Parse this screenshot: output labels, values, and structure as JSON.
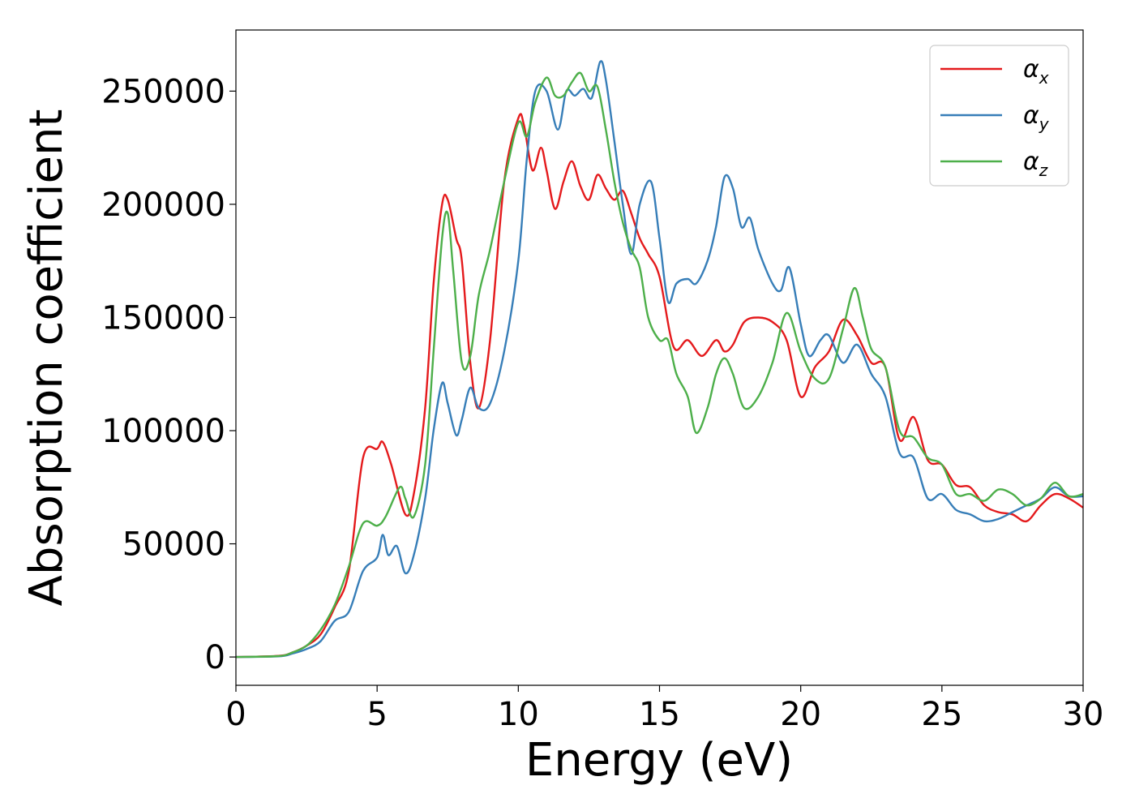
{
  "chart_data": {
    "type": "line",
    "title": "",
    "xlabel": "Energy (eV)",
    "ylabel": "Absorption coefficient",
    "xlim": [
      0,
      30
    ],
    "ylim": [
      -12500,
      277000
    ],
    "xticks": [
      0,
      5,
      10,
      15,
      20,
      25,
      30
    ],
    "xtick_labels": [
      "0",
      "5",
      "10",
      "15",
      "20",
      "25",
      "30"
    ],
    "yticks": [
      0,
      50000,
      100000,
      150000,
      200000,
      250000
    ],
    "ytick_labels": [
      "0",
      "50000",
      "100000",
      "150000",
      "200000",
      "250000"
    ],
    "legend_position": "top-right",
    "grid": false,
    "series": [
      {
        "name": "α_x",
        "symbol": "α",
        "subscript": "x",
        "color": "#e41a1c",
        "points": [
          [
            0,
            0
          ],
          [
            1.5,
            500
          ],
          [
            2,
            2000
          ],
          [
            2.5,
            5000
          ],
          [
            3,
            10000
          ],
          [
            3.5,
            22000
          ],
          [
            4,
            38000
          ],
          [
            4.5,
            88000
          ],
          [
            5,
            92000
          ],
          [
            5.2,
            95000
          ],
          [
            5.5,
            85000
          ],
          [
            6,
            63000
          ],
          [
            6.3,
            72000
          ],
          [
            6.7,
            110000
          ],
          [
            7,
            165000
          ],
          [
            7.3,
            200000
          ],
          [
            7.5,
            202000
          ],
          [
            7.8,
            185000
          ],
          [
            8,
            175000
          ],
          [
            8.3,
            130000
          ],
          [
            8.6,
            110000
          ],
          [
            9,
            140000
          ],
          [
            9.5,
            210000
          ],
          [
            10,
            238000
          ],
          [
            10.2,
            235000
          ],
          [
            10.5,
            215000
          ],
          [
            10.8,
            225000
          ],
          [
            11,
            215000
          ],
          [
            11.3,
            198000
          ],
          [
            11.6,
            210000
          ],
          [
            11.9,
            219000
          ],
          [
            12.2,
            208000
          ],
          [
            12.5,
            202000
          ],
          [
            12.8,
            213000
          ],
          [
            13.1,
            207000
          ],
          [
            13.4,
            202000
          ],
          [
            13.7,
            206000
          ],
          [
            14,
            196000
          ],
          [
            14.3,
            185000
          ],
          [
            14.6,
            178000
          ],
          [
            15,
            168000
          ],
          [
            15.5,
            137000
          ],
          [
            16,
            140000
          ],
          [
            16.5,
            133000
          ],
          [
            17,
            140000
          ],
          [
            17.3,
            135000
          ],
          [
            17.6,
            138000
          ],
          [
            18,
            148000
          ],
          [
            18.5,
            150000
          ],
          [
            19,
            148000
          ],
          [
            19.5,
            140000
          ],
          [
            20,
            115000
          ],
          [
            20.5,
            128000
          ],
          [
            21,
            135000
          ],
          [
            21.5,
            149000
          ],
          [
            22,
            142000
          ],
          [
            22.5,
            130000
          ],
          [
            23,
            128000
          ],
          [
            23.5,
            96000
          ],
          [
            24,
            106000
          ],
          [
            24.5,
            87000
          ],
          [
            25,
            85000
          ],
          [
            25.5,
            76000
          ],
          [
            26,
            75000
          ],
          [
            26.5,
            67000
          ],
          [
            27,
            64000
          ],
          [
            27.5,
            63000
          ],
          [
            28,
            60000
          ],
          [
            28.5,
            67000
          ],
          [
            29,
            72000
          ],
          [
            29.5,
            70000
          ],
          [
            30,
            66000
          ]
        ]
      },
      {
        "name": "α_y",
        "symbol": "α",
        "subscript": "y",
        "color": "#377eb8",
        "points": [
          [
            0,
            0
          ],
          [
            1.5,
            300
          ],
          [
            2,
            1500
          ],
          [
            2.5,
            3500
          ],
          [
            3,
            7000
          ],
          [
            3.5,
            16000
          ],
          [
            4,
            20000
          ],
          [
            4.5,
            38000
          ],
          [
            5,
            44000
          ],
          [
            5.2,
            54000
          ],
          [
            5.4,
            45000
          ],
          [
            5.7,
            49000
          ],
          [
            6,
            37000
          ],
          [
            6.3,
            45000
          ],
          [
            6.7,
            70000
          ],
          [
            7,
            100000
          ],
          [
            7.3,
            121000
          ],
          [
            7.5,
            112000
          ],
          [
            7.8,
            98000
          ],
          [
            8,
            105000
          ],
          [
            8.3,
            119000
          ],
          [
            8.6,
            110000
          ],
          [
            9,
            112000
          ],
          [
            9.5,
            135000
          ],
          [
            10,
            175000
          ],
          [
            10.3,
            220000
          ],
          [
            10.6,
            250000
          ],
          [
            11,
            250000
          ],
          [
            11.4,
            233000
          ],
          [
            11.7,
            250000
          ],
          [
            12,
            248000
          ],
          [
            12.3,
            251000
          ],
          [
            12.6,
            247000
          ],
          [
            12.9,
            263000
          ],
          [
            13.1,
            255000
          ],
          [
            13.4,
            228000
          ],
          [
            13.7,
            200000
          ],
          [
            14,
            178000
          ],
          [
            14.3,
            200000
          ],
          [
            14.7,
            210000
          ],
          [
            15,
            185000
          ],
          [
            15.3,
            157000
          ],
          [
            15.6,
            165000
          ],
          [
            16,
            167000
          ],
          [
            16.3,
            165000
          ],
          [
            16.7,
            175000
          ],
          [
            17,
            190000
          ],
          [
            17.3,
            212000
          ],
          [
            17.6,
            207000
          ],
          [
            17.9,
            190000
          ],
          [
            18.2,
            194000
          ],
          [
            18.5,
            180000
          ],
          [
            19,
            165000
          ],
          [
            19.3,
            162000
          ],
          [
            19.6,
            172000
          ],
          [
            20,
            147000
          ],
          [
            20.3,
            133000
          ],
          [
            20.7,
            140000
          ],
          [
            21,
            142000
          ],
          [
            21.5,
            130000
          ],
          [
            22,
            138000
          ],
          [
            22.5,
            125000
          ],
          [
            23,
            115000
          ],
          [
            23.5,
            90000
          ],
          [
            24,
            88000
          ],
          [
            24.5,
            70000
          ],
          [
            25,
            72000
          ],
          [
            25.5,
            65000
          ],
          [
            26,
            63000
          ],
          [
            26.5,
            60000
          ],
          [
            27,
            61000
          ],
          [
            27.5,
            64000
          ],
          [
            28,
            67000
          ],
          [
            28.5,
            70000
          ],
          [
            29,
            75000
          ],
          [
            29.5,
            71000
          ],
          [
            30,
            71000
          ]
        ]
      },
      {
        "name": "α_z",
        "symbol": "α",
        "subscript": "z",
        "color": "#4daf4a",
        "points": [
          [
            0,
            0
          ],
          [
            1.5,
            400
          ],
          [
            2,
            2000
          ],
          [
            2.5,
            5000
          ],
          [
            3,
            12000
          ],
          [
            3.5,
            23000
          ],
          [
            4,
            40000
          ],
          [
            4.5,
            59000
          ],
          [
            5,
            58000
          ],
          [
            5.3,
            62000
          ],
          [
            5.8,
            75000
          ],
          [
            6,
            70000
          ],
          [
            6.3,
            62000
          ],
          [
            6.7,
            85000
          ],
          [
            7,
            135000
          ],
          [
            7.3,
            185000
          ],
          [
            7.5,
            196000
          ],
          [
            7.7,
            170000
          ],
          [
            8,
            130000
          ],
          [
            8.3,
            133000
          ],
          [
            8.6,
            160000
          ],
          [
            9,
            180000
          ],
          [
            9.5,
            210000
          ],
          [
            10,
            236000
          ],
          [
            10.3,
            230000
          ],
          [
            10.6,
            245000
          ],
          [
            11,
            256000
          ],
          [
            11.3,
            248000
          ],
          [
            11.6,
            248000
          ],
          [
            11.9,
            254000
          ],
          [
            12.2,
            258000
          ],
          [
            12.5,
            250000
          ],
          [
            12.8,
            252000
          ],
          [
            13.1,
            233000
          ],
          [
            13.4,
            210000
          ],
          [
            13.7,
            192000
          ],
          [
            14,
            180000
          ],
          [
            14.3,
            172000
          ],
          [
            14.6,
            150000
          ],
          [
            15,
            140000
          ],
          [
            15.3,
            140000
          ],
          [
            15.6,
            125000
          ],
          [
            16,
            115000
          ],
          [
            16.3,
            99000
          ],
          [
            16.7,
            110000
          ],
          [
            17,
            125000
          ],
          [
            17.3,
            132000
          ],
          [
            17.6,
            125000
          ],
          [
            18,
            110000
          ],
          [
            18.5,
            115000
          ],
          [
            19,
            130000
          ],
          [
            19.5,
            152000
          ],
          [
            20,
            135000
          ],
          [
            20.5,
            123000
          ],
          [
            21,
            123000
          ],
          [
            21.5,
            145000
          ],
          [
            21.9,
            163000
          ],
          [
            22.2,
            150000
          ],
          [
            22.5,
            136000
          ],
          [
            23,
            128000
          ],
          [
            23.5,
            100000
          ],
          [
            24,
            97000
          ],
          [
            24.5,
            88000
          ],
          [
            25,
            85000
          ],
          [
            25.5,
            72000
          ],
          [
            26,
            72000
          ],
          [
            26.5,
            69000
          ],
          [
            27,
            74000
          ],
          [
            27.5,
            72000
          ],
          [
            28,
            67000
          ],
          [
            28.5,
            70000
          ],
          [
            29,
            77000
          ],
          [
            29.5,
            71000
          ],
          [
            30,
            72000
          ]
        ]
      }
    ]
  }
}
